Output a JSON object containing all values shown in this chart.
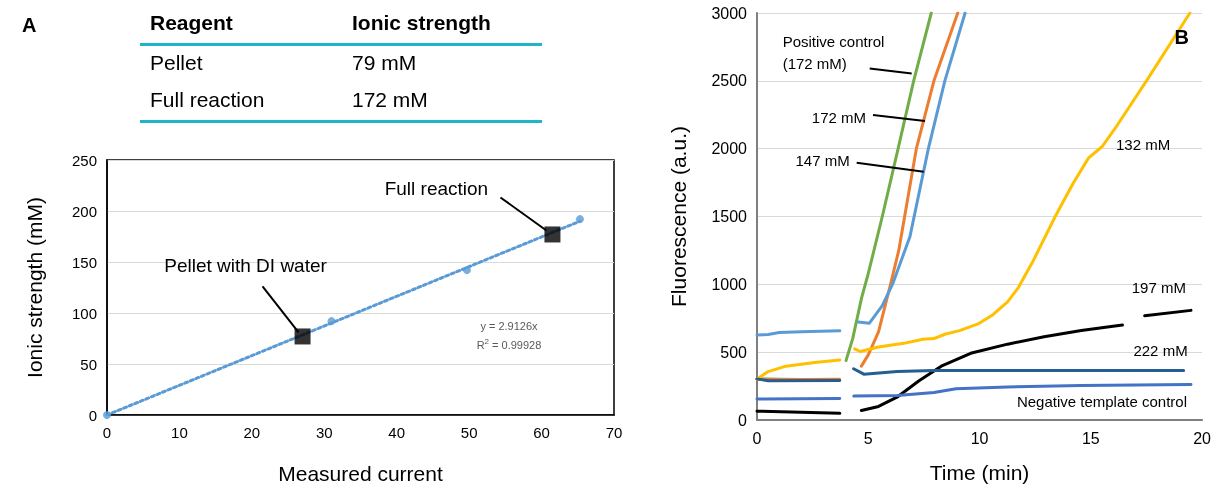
{
  "chart_data": [
    {
      "type": "other",
      "annotations": [
        "A",
        "Reagent",
        "Ionic strength",
        "Pellet",
        "79 mM",
        "Full reaction",
        "172 mM"
      ]
    },
    {
      "type": "scatter",
      "xlabel": "Measured current",
      "ylabel": "Ionic strength (mM)",
      "xlim": [
        0,
        70
      ],
      "xticks": [
        0,
        10,
        20,
        30,
        40,
        50,
        60,
        70
      ],
      "ylim": [
        0,
        250
      ],
      "yticks": [
        0,
        50,
        100,
        150,
        200,
        250
      ],
      "grid": "y",
      "series": [
        {
          "type": "scatter",
          "color": "#5b9bd5",
          "marker": "circle",
          "x": [
            0,
            31,
            49.7,
            65.3
          ],
          "values": [
            0,
            92,
            142,
            192
          ]
        },
        {
          "type": "scatter",
          "color": "#000000",
          "marker": "square",
          "x": [
            27,
            61.5
          ],
          "values": [
            77,
            177
          ]
        },
        {
          "type": "line",
          "color": "#5b9bd5",
          "marker": "none",
          "line_style": "dotted",
          "x": [
            0,
            65.3
          ],
          "values": [
            0,
            190
          ]
        }
      ],
      "annotations": [
        {
          "text": "Pellet with DI water",
          "x": 27,
          "y": 77
        },
        {
          "text": "Full reaction",
          "x": 61.5,
          "y": 177
        },
        "y = 2.9126x",
        "R$^{2}$ = 0.99928"
      ]
    },
    {
      "type": "line",
      "title": "B",
      "xlabel": "Time (min)",
      "ylabel": "Fluorescence (a.u.)",
      "xlim": [
        0,
        20
      ],
      "xticks": [
        0,
        5,
        10,
        15,
        20
      ],
      "ylim": [
        0,
        3000
      ],
      "yticks": [
        0,
        500,
        1000,
        1500,
        2000,
        2500,
        3000
      ],
      "grid": "y",
      "marker": "none",
      "line_style": "solid",
      "series": [
        {
          "color": "#70ad47",
          "x": [
            0,
            1,
            2,
            3.7,
            3.85,
            4.0,
            4.3,
            4.7,
            5.0,
            5.63,
            6.34,
            7.04,
            7.83
          ],
          "values": [
            303,
            300,
            298,
            297,
            null,
            438,
            600,
            900,
            1080,
            1500,
            2000,
            2500,
            3000
          ]
        },
        {
          "color": "#ed7d31",
          "x": [
            0,
            1,
            2,
            3.7,
            3.85,
            4.69,
            5.0,
            5.46,
            6.0,
            6.37,
            7.16,
            7.95,
            9.02
          ],
          "values": [
            300,
            298,
            298,
            300,
            null,
            397,
            480,
            650,
            1000,
            1250,
            2000,
            2500,
            3000
          ]
        },
        {
          "color": "#5b9bd5",
          "x": [
            0,
            0.5,
            1,
            2,
            3.72,
            3.85,
            4.55,
            5.05,
            5.63,
            6.1,
            6.87,
            7.7,
            8.44,
            9.35
          ],
          "values": [
            627,
            630,
            645,
            650,
            657,
            null,
            722,
            714,
            843,
            1005,
            1350,
            2000,
            2500,
            3000
          ]
        },
        {
          "color": "#ffc000",
          "x": [
            0,
            0.5,
            1.3,
            2.6,
            3.72,
            3.85,
            4.39,
            4.64,
            5.46,
            6.6,
            7.45,
            7.95,
            8.44,
            9.1,
            9.93,
            10.6,
            11.26,
            11.75,
            12.4,
            13.4,
            14.2,
            14.9,
            15.5,
            16.2,
            17.5,
            19.45
          ],
          "values": [
            303,
            357,
            397,
            424,
            443,
            null,
            524,
            505,
            538,
            565,
            595,
            600,
            632,
            659,
            708,
            776,
            870,
            978,
            1170,
            1500,
            1743,
            1932,
            2014,
            2176,
            2500,
            3000
          ]
        },
        {
          "color": "#000000",
          "x": [
            0,
            3.72,
            3.85,
            4.69,
            5.46,
            6.29,
            7.28,
            8.28,
            9.6,
            11.26,
            12.9,
            14.57,
            16.42,
            16.9,
            17.42,
            19.5
          ],
          "values": [
            65,
            49,
            null,
            70,
            100,
            168,
            289,
            397,
            492,
            559,
            614,
            659,
            700,
            null,
            768,
            808
          ]
        },
        {
          "color": "#255e91",
          "x": [
            0,
            0.5,
            3.72,
            3.85,
            4.34,
            4.8,
            6.3,
            7.95,
            11.26,
            19.17
          ],
          "values": [
            303,
            289,
            292,
            null,
            378,
            338,
            357,
            365,
            365,
            365
          ]
        },
        {
          "color": "#4472c4",
          "x": [
            0,
            3.72,
            3.85,
            4.35,
            6.3,
            7.95,
            8.94,
            11.26,
            14.57,
            19.5
          ],
          "values": [
            154,
            159,
            null,
            176,
            181,
            203,
            230,
            243,
            254,
            262
          ]
        }
      ],
      "annotations": [
        {
          "text": "Positive control (172 mM)",
          "x": 6.95,
          "y": 2554
        },
        "172 mM",
        {
          "text": "147 mM",
          "x": 7.49,
          "y": 1830
        },
        {
          "text": "132 mM",
          "x": 15.5,
          "y": 2014
        },
        {
          "text": "197 mM",
          "x": 19.5,
          "y": 808
        },
        {
          "text": "222 mM",
          "x": 19.17,
          "y": 365
        },
        {
          "text": "Negative template control",
          "x": 19.5,
          "y": 262
        }
      ]
    }
  ]
}
